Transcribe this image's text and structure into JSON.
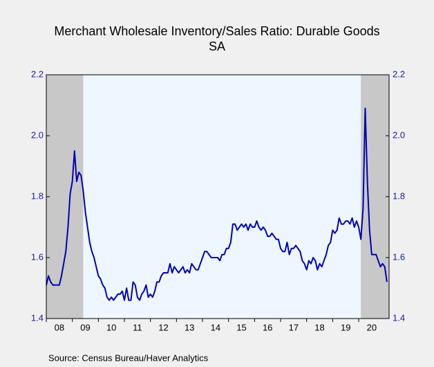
{
  "chart_data": {
    "type": "line",
    "title": "Merchant Wholesale Inventory/Sales Ratio: Durable Goods",
    "subtitle": "SA",
    "source": "Source:  Census Bureau/Haver Analytics",
    "xlim": [
      "2008-01",
      "2021-03"
    ],
    "xticks": [
      {
        "value": "2008",
        "label": "08"
      },
      {
        "value": "2009",
        "label": "09"
      },
      {
        "value": "2010",
        "label": "10"
      },
      {
        "value": "2011",
        "label": "11"
      },
      {
        "value": "2012",
        "label": "12"
      },
      {
        "value": "2013",
        "label": "13"
      },
      {
        "value": "2014",
        "label": "14"
      },
      {
        "value": "2015",
        "label": "15"
      },
      {
        "value": "2016",
        "label": "16"
      },
      {
        "value": "2017",
        "label": "17"
      },
      {
        "value": "2018",
        "label": "18"
      },
      {
        "value": "2019",
        "label": "19"
      },
      {
        "value": "2020",
        "label": "20"
      }
    ],
    "ylim": [
      1.4,
      2.2
    ],
    "yticks": [
      {
        "value": 1.4,
        "label": "1.4"
      },
      {
        "value": 1.6,
        "label": "1.6"
      },
      {
        "value": 1.8,
        "label": "1.8"
      },
      {
        "value": 2.0,
        "label": "2.0"
      },
      {
        "value": 2.2,
        "label": "2.2"
      }
    ],
    "y2lim": [
      1.4,
      2.2
    ],
    "y2ticks": [
      {
        "value": 1.4,
        "label": "1.4"
      },
      {
        "value": 1.6,
        "label": "1.6"
      },
      {
        "value": 1.8,
        "label": "1.8"
      },
      {
        "value": 2.0,
        "label": "2.0"
      },
      {
        "value": 2.2,
        "label": "2.2"
      }
    ],
    "plot_background": "#eef6ff",
    "recession_color": "#c8c8c8",
    "recessions": [
      [
        "2008-01",
        "2009-06"
      ],
      [
        "2020-02",
        "2021-03"
      ]
    ],
    "x": [
      "2008-01",
      "2008-02",
      "2008-03",
      "2008-04",
      "2008-05",
      "2008-06",
      "2008-07",
      "2008-08",
      "2008-09",
      "2008-10",
      "2008-11",
      "2008-12",
      "2009-01",
      "2009-02",
      "2009-03",
      "2009-04",
      "2009-05",
      "2009-06",
      "2009-07",
      "2009-08",
      "2009-09",
      "2009-10",
      "2009-11",
      "2009-12",
      "2010-01",
      "2010-02",
      "2010-03",
      "2010-04",
      "2010-05",
      "2010-06",
      "2010-07",
      "2010-08",
      "2010-09",
      "2010-10",
      "2010-11",
      "2010-12",
      "2011-01",
      "2011-02",
      "2011-03",
      "2011-04",
      "2011-05",
      "2011-06",
      "2011-07",
      "2011-08",
      "2011-09",
      "2011-10",
      "2011-11",
      "2011-12",
      "2012-01",
      "2012-02",
      "2012-03",
      "2012-04",
      "2012-05",
      "2012-06",
      "2012-07",
      "2012-08",
      "2012-09",
      "2012-10",
      "2012-11",
      "2012-12",
      "2013-01",
      "2013-02",
      "2013-03",
      "2013-04",
      "2013-05",
      "2013-06",
      "2013-07",
      "2013-08",
      "2013-09",
      "2013-10",
      "2013-11",
      "2013-12",
      "2014-01",
      "2014-02",
      "2014-03",
      "2014-04",
      "2014-05",
      "2014-06",
      "2014-07",
      "2014-08",
      "2014-09",
      "2014-10",
      "2014-11",
      "2014-12",
      "2015-01",
      "2015-02",
      "2015-03",
      "2015-04",
      "2015-05",
      "2015-06",
      "2015-07",
      "2015-08",
      "2015-09",
      "2015-10",
      "2015-11",
      "2015-12",
      "2016-01",
      "2016-02",
      "2016-03",
      "2016-04",
      "2016-05",
      "2016-06",
      "2016-07",
      "2016-08",
      "2016-09",
      "2016-10",
      "2016-11",
      "2016-12",
      "2017-01",
      "2017-02",
      "2017-03",
      "2017-04",
      "2017-05",
      "2017-06",
      "2017-07",
      "2017-08",
      "2017-09",
      "2017-10",
      "2017-11",
      "2017-12",
      "2018-01",
      "2018-02",
      "2018-03",
      "2018-04",
      "2018-05",
      "2018-06",
      "2018-07",
      "2018-08",
      "2018-09",
      "2018-10",
      "2018-11",
      "2018-12",
      "2019-01",
      "2019-02",
      "2019-03",
      "2019-04",
      "2019-05",
      "2019-06",
      "2019-07",
      "2019-08",
      "2019-09",
      "2019-10",
      "2019-11",
      "2019-12",
      "2020-01",
      "2020-02",
      "2020-03",
      "2020-04",
      "2020-05",
      "2020-06",
      "2020-07",
      "2020-08",
      "2020-09",
      "2020-10",
      "2020-11",
      "2020-12",
      "2021-01",
      "2021-02"
    ],
    "series": [
      {
        "color": "#0000b4",
        "values": [
          1.51,
          1.54,
          1.52,
          1.51,
          1.51,
          1.51,
          1.51,
          1.54,
          1.58,
          1.62,
          1.7,
          1.81,
          1.85,
          1.95,
          1.85,
          1.88,
          1.87,
          1.82,
          1.75,
          1.7,
          1.65,
          1.62,
          1.6,
          1.57,
          1.54,
          1.53,
          1.51,
          1.5,
          1.47,
          1.46,
          1.47,
          1.46,
          1.47,
          1.48,
          1.48,
          1.49,
          1.46,
          1.5,
          1.46,
          1.46,
          1.52,
          1.51,
          1.47,
          1.46,
          1.48,
          1.49,
          1.51,
          1.47,
          1.48,
          1.47,
          1.49,
          1.52,
          1.52,
          1.54,
          1.55,
          1.55,
          1.55,
          1.58,
          1.55,
          1.57,
          1.56,
          1.55,
          1.56,
          1.57,
          1.55,
          1.56,
          1.55,
          1.58,
          1.57,
          1.56,
          1.56,
          1.58,
          1.6,
          1.62,
          1.62,
          1.61,
          1.6,
          1.6,
          1.6,
          1.6,
          1.59,
          1.61,
          1.61,
          1.63,
          1.63,
          1.65,
          1.71,
          1.71,
          1.69,
          1.7,
          1.71,
          1.7,
          1.71,
          1.69,
          1.71,
          1.7,
          1.7,
          1.72,
          1.7,
          1.69,
          1.7,
          1.69,
          1.67,
          1.67,
          1.68,
          1.67,
          1.66,
          1.66,
          1.63,
          1.62,
          1.62,
          1.65,
          1.61,
          1.63,
          1.63,
          1.64,
          1.63,
          1.62,
          1.59,
          1.58,
          1.56,
          1.59,
          1.58,
          1.6,
          1.59,
          1.56,
          1.58,
          1.57,
          1.59,
          1.61,
          1.64,
          1.65,
          1.69,
          1.68,
          1.69,
          1.73,
          1.71,
          1.71,
          1.72,
          1.72,
          1.71,
          1.73,
          1.7,
          1.72,
          1.7,
          1.66,
          1.76,
          2.09,
          1.85,
          1.69,
          1.61,
          1.61,
          1.61,
          1.59,
          1.57,
          1.58,
          1.57,
          1.52
        ]
      }
    ]
  }
}
